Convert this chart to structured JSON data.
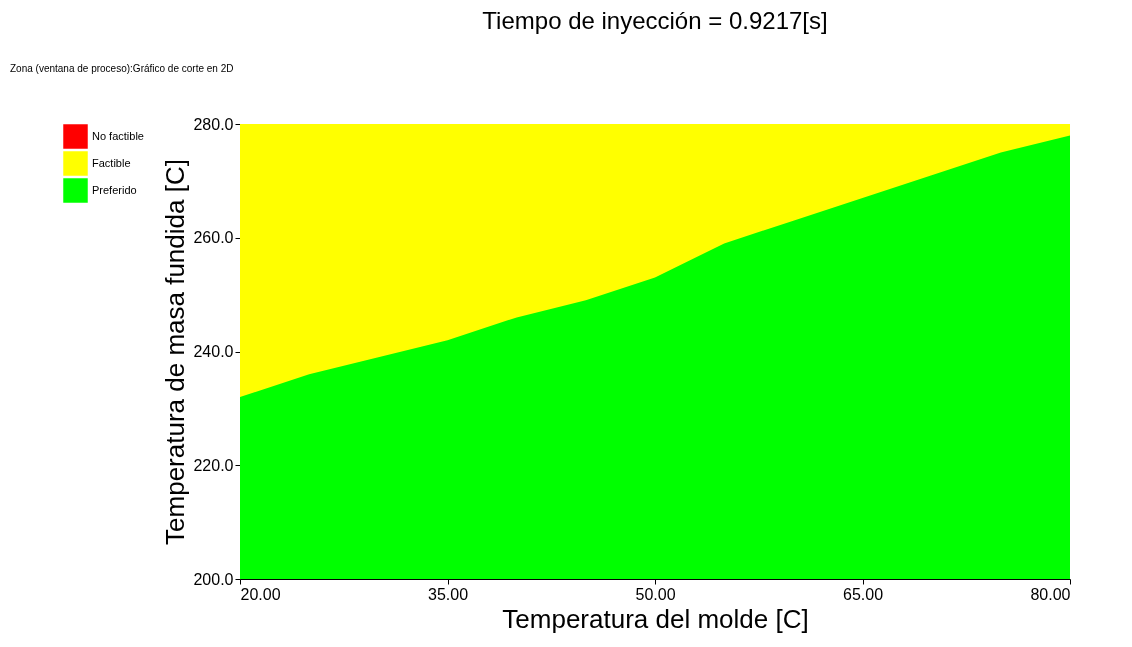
{
  "chart_data": {
    "type": "area",
    "title": "Tiempo de inyección = 0.9217[s]",
    "annotations": [
      "Zona (ventana de proceso):Gráfico de corte en 2D"
    ],
    "xlabel": "Temperatura del molde [C]",
    "ylabel": "Temperatura de masa fundida [C]",
    "x": [
      20,
      25,
      30,
      35,
      40,
      45,
      50,
      55,
      60,
      65,
      70,
      75,
      80
    ],
    "series": [
      {
        "name": "No factible",
        "color": "#ff0000",
        "values": [
          null,
          null,
          null,
          null,
          null,
          null,
          null,
          null,
          null,
          null,
          null,
          null,
          null
        ]
      },
      {
        "name": "Factible",
        "color": "#ffff00",
        "values": [
          280,
          280,
          280,
          280,
          280,
          280,
          280,
          280,
          280,
          280,
          280,
          280,
          280
        ]
      },
      {
        "name": "Preferido",
        "color": "#00ff00",
        "values": [
          232,
          236,
          239,
          242,
          246,
          249,
          253,
          259,
          263,
          267,
          271,
          275,
          278
        ]
      }
    ],
    "xlim": [
      20,
      80
    ],
    "xticks": [
      {
        "value": 20,
        "label": "20.00"
      },
      {
        "value": 35,
        "label": "35.00"
      },
      {
        "value": 50,
        "label": "50.00"
      },
      {
        "value": 65,
        "label": "65.00"
      },
      {
        "value": 80,
        "label": "80.00"
      }
    ],
    "ylim": [
      200,
      280
    ],
    "yticks": [
      {
        "value": 200,
        "label": "200.0"
      },
      {
        "value": 220,
        "label": "220.0"
      },
      {
        "value": 240,
        "label": "240.0"
      },
      {
        "value": 260,
        "label": "260.0"
      },
      {
        "value": 280,
        "label": "280.0"
      }
    ],
    "grid": false,
    "legend": "left"
  }
}
